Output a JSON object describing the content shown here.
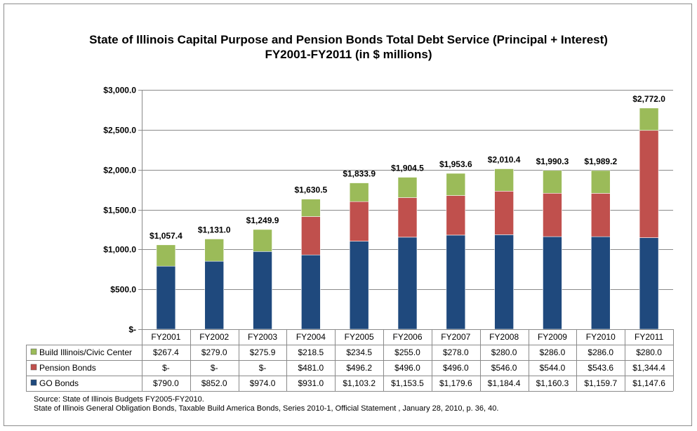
{
  "chart_data": {
    "type": "bar",
    "stacked": true,
    "title": "State of Illinois Capital Purpose and Pension Bonds Total Debt Service (Principal + Interest)",
    "subtitle": "FY2001-FY2011 (in $ millions)",
    "categories": [
      "FY2001",
      "FY2002",
      "FY2003",
      "FY2004",
      "FY2005",
      "FY2006",
      "FY2007",
      "FY2008",
      "FY2009",
      "FY2010",
      "FY2011"
    ],
    "series": [
      {
        "name": "GO Bonds",
        "color": "#1f497d",
        "values": [
          790.0,
          852.0,
          974.0,
          931.0,
          1103.2,
          1153.5,
          1179.6,
          1184.4,
          1160.3,
          1159.7,
          1147.6
        ],
        "table_labels": [
          "$790.0",
          "$852.0",
          "$974.0",
          "$931.0",
          "$1,103.2",
          "$1,153.5",
          "$1,179.6",
          "$1,184.4",
          "$1,160.3",
          "$1,159.7",
          "$1,147.6"
        ]
      },
      {
        "name": "Pension Bonds",
        "color": "#c0504d",
        "values": [
          0,
          0,
          0,
          481.0,
          496.2,
          496.0,
          496.0,
          546.0,
          544.0,
          543.6,
          1344.4
        ],
        "table_labels": [
          "$-",
          "$-",
          "$-",
          "$481.0",
          "$496.2",
          "$496.0",
          "$496.0",
          "$546.0",
          "$544.0",
          "$543.6",
          "$1,344.4"
        ]
      },
      {
        "name": "Build Illinois/Civic Center",
        "color": "#9bbb59",
        "values": [
          267.4,
          279.0,
          275.9,
          218.5,
          234.5,
          255.0,
          278.0,
          280.0,
          286.0,
          286.0,
          280.0
        ],
        "table_labels": [
          "$267.4",
          "$279.0",
          "$275.9",
          "$218.5",
          "$234.5",
          "$255.0",
          "$278.0",
          "$280.0",
          "$286.0",
          "$286.0",
          "$280.0"
        ]
      }
    ],
    "totals": [
      1057.4,
      1131.0,
      1249.9,
      1630.5,
      1833.9,
      1904.5,
      1953.6,
      2010.4,
      1990.3,
      1989.2,
      2772.0
    ],
    "total_labels": [
      "$1,057.4",
      "$1,131.0",
      "$1,249.9",
      "$1,630.5",
      "$1,833.9",
      "$1,904.5",
      "$1,953.6",
      "$2,010.4",
      "$1,990.3",
      "$1,989.2",
      "$2,772.0"
    ],
    "ylim": [
      0,
      3000
    ],
    "yticks": [
      0,
      500,
      1000,
      1500,
      2000,
      2500,
      3000
    ],
    "ytick_labels": [
      "$-",
      "$500.0",
      "$1,000.0",
      "$1,500.0",
      "$2,000.0",
      "$2,500.0",
      "$3,000.0"
    ],
    "grid": true,
    "data_table": true
  },
  "sources": {
    "line1": "Source: State of Illinois Budgets FY2005-FY2010.",
    "line2": "State of Illinois General Obligation Bonds, Taxable Build America Bonds, Series 2010-1, Official Statement , January 28, 2010, p. 36, 40."
  }
}
